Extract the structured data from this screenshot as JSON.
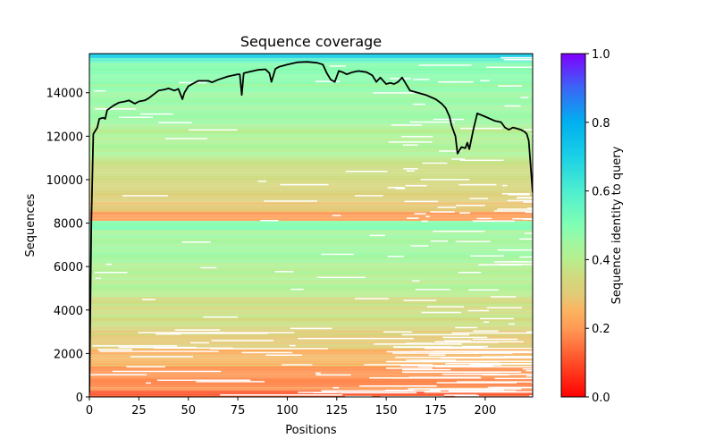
{
  "chart_data": {
    "type": "heatmap",
    "title": "Sequence coverage",
    "xlabel": "Positions",
    "ylabel": "Sequences",
    "xlim": [
      0,
      224
    ],
    "ylim": [
      0,
      15800
    ],
    "xticks": [
      0,
      25,
      50,
      75,
      100,
      125,
      150,
      175,
      200
    ],
    "yticks": [
      0,
      2000,
      4000,
      6000,
      8000,
      10000,
      12000,
      14000
    ],
    "colorbar": {
      "label": "Sequence identity to query",
      "range": [
        0.0,
        1.0
      ],
      "ticks": [
        "0.0",
        "0.2",
        "0.4",
        "0.6",
        "0.8",
        "1.0"
      ],
      "colormap": "rainbow_r",
      "stops": [
        {
          "v": 0.0,
          "color": "#ff0000"
        },
        {
          "v": 0.1,
          "color": "#ff4d27"
        },
        {
          "v": 0.2,
          "color": "#ff9a55"
        },
        {
          "v": 0.25,
          "color": "#fcb360"
        },
        {
          "v": 0.3,
          "color": "#e0cc78"
        },
        {
          "v": 0.35,
          "color": "#d2d97e"
        },
        {
          "v": 0.4,
          "color": "#b7ee8e"
        },
        {
          "v": 0.45,
          "color": "#a0f7a0"
        },
        {
          "v": 0.5,
          "color": "#80ffb4"
        },
        {
          "v": 0.6,
          "color": "#4deed0"
        },
        {
          "v": 0.7,
          "color": "#1ad0e6"
        },
        {
          "v": 0.8,
          "color": "#00b0ef"
        },
        {
          "v": 0.9,
          "color": "#3a66f6"
        },
        {
          "v": 1.0,
          "color": "#8000ff"
        }
      ]
    },
    "coverage_line": {
      "name": "coverage",
      "color": "#000000",
      "x": [
        0,
        1,
        2,
        4,
        5,
        7,
        8,
        9,
        12,
        15,
        18,
        20,
        23,
        25,
        28,
        30,
        35,
        38,
        40,
        43,
        45,
        47,
        48,
        50,
        52,
        55,
        60,
        62,
        65,
        70,
        75,
        76,
        77,
        78,
        80,
        85,
        89,
        91,
        92,
        94,
        96,
        100,
        105,
        110,
        115,
        118,
        120,
        122,
        124,
        126,
        128,
        130,
        133,
        136,
        140,
        143,
        145,
        147,
        150,
        152,
        154,
        156,
        158,
        162,
        166,
        170,
        175,
        178,
        180,
        182,
        183,
        185,
        186,
        188,
        190,
        191,
        192,
        194,
        196,
        200,
        205,
        208,
        210,
        212,
        214,
        216,
        218,
        220,
        221,
        222,
        224
      ],
      "y": [
        200,
        8000,
        12100,
        12400,
        12800,
        12850,
        12800,
        13200,
        13400,
        13550,
        13600,
        13650,
        13500,
        13600,
        13650,
        13750,
        14100,
        14150,
        14200,
        14100,
        14180,
        13700,
        14000,
        14300,
        14400,
        14550,
        14550,
        14480,
        14600,
        14750,
        14850,
        14850,
        13900,
        14900,
        14950,
        15050,
        15080,
        14900,
        14500,
        15100,
        15200,
        15300,
        15400,
        15420,
        15380,
        15300,
        14900,
        14600,
        14500,
        15000,
        14950,
        14850,
        14950,
        15000,
        14950,
        14800,
        14500,
        14700,
        14400,
        14450,
        14400,
        14500,
        14700,
        14100,
        14000,
        13900,
        13700,
        13500,
        13300,
        12900,
        12500,
        12000,
        11200,
        11500,
        11450,
        11700,
        11400,
        12300,
        13050,
        12900,
        12700,
        12650,
        12400,
        12300,
        12400,
        12350,
        12300,
        12200,
        12100,
        11800,
        9400
      ]
    },
    "identity_bands": [
      {
        "from": 15600,
        "to": 15800,
        "identity": 0.72
      },
      {
        "from": 15400,
        "to": 15600,
        "identity": 0.58
      },
      {
        "from": 14400,
        "to": 15400,
        "identity": 0.49
      },
      {
        "from": 12500,
        "to": 14400,
        "identity": 0.46
      },
      {
        "from": 11000,
        "to": 12500,
        "identity": 0.42
      },
      {
        "from": 10000,
        "to": 11000,
        "identity": 0.37
      },
      {
        "from": 9000,
        "to": 10000,
        "identity": 0.33
      },
      {
        "from": 8500,
        "to": 9000,
        "identity": 0.28
      },
      {
        "from": 8100,
        "to": 8500,
        "identity": 0.2
      },
      {
        "from": 7700,
        "to": 8100,
        "identity": 0.5
      },
      {
        "from": 6200,
        "to": 7700,
        "identity": 0.45
      },
      {
        "from": 4600,
        "to": 6200,
        "identity": 0.41
      },
      {
        "from": 3200,
        "to": 4600,
        "identity": 0.36
      },
      {
        "from": 2200,
        "to": 3200,
        "identity": 0.31
      },
      {
        "from": 1400,
        "to": 2200,
        "identity": 0.26
      },
      {
        "from": 300,
        "to": 1400,
        "identity": 0.19
      },
      {
        "from": 0,
        "to": 300,
        "identity": 0.12
      }
    ]
  }
}
